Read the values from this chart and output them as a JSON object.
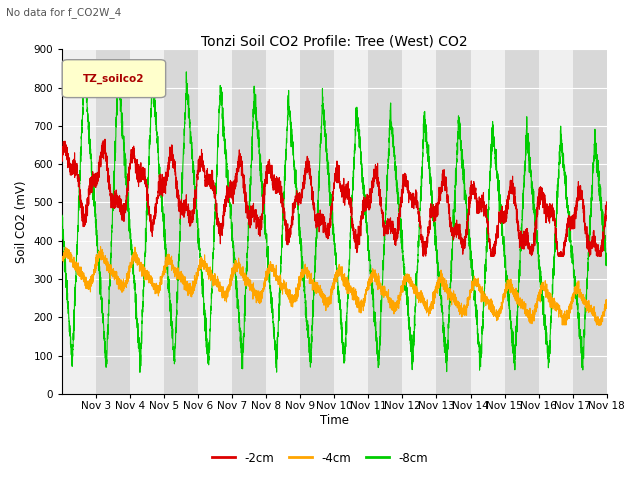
{
  "title": "Tonzi Soil CO2 Profile: Tree (West) CO2",
  "subtitle": "No data for f_CO2W_4",
  "ylabel": "Soil CO2 (mV)",
  "xlabel": "Time",
  "legend_label": "TZ_soilco2",
  "line_labels": [
    "-2cm",
    "-4cm",
    "-8cm"
  ],
  "line_colors": [
    "#dd0000",
    "#ffa500",
    "#00cc00"
  ],
  "ylim": [
    0,
    900
  ],
  "yticks": [
    0,
    100,
    200,
    300,
    400,
    500,
    600,
    700,
    800,
    900
  ],
  "xtick_labels": [
    "Nov 3",
    "Nov 4",
    "Nov 5",
    "Nov 6",
    "Nov 7",
    "Nov 8",
    "Nov 9",
    "Nov 10",
    "Nov 11",
    "Nov 12",
    "Nov 13",
    "Nov 14",
    "Nov 15",
    "Nov 16",
    "Nov 17",
    "Nov 18"
  ],
  "n_days": 16,
  "background_light": "#d8d8d8",
  "background_white": "#f0f0f0",
  "fig_bg": "#ffffff",
  "figsize": [
    6.4,
    4.8
  ],
  "dpi": 100
}
